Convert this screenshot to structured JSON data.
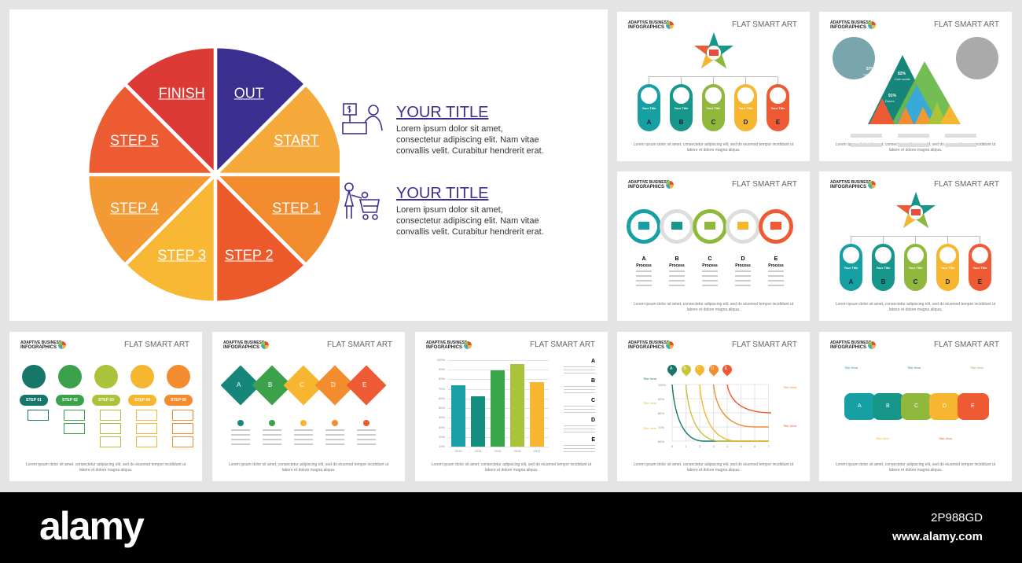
{
  "main": {
    "pie": [
      {
        "label": "OUT",
        "color": "#3a2f8e"
      },
      {
        "label": "START",
        "color": "#f6a93b"
      },
      {
        "label": "STEP 1",
        "color": "#f28c2e"
      },
      {
        "label": "STEP 2",
        "color": "#ec5a2c"
      },
      {
        "label": "STEP 3",
        "color": "#f8b833"
      },
      {
        "label": "STEP 4",
        "color": "#f39a34"
      },
      {
        "label": "STEP 5",
        "color": "#ec5b31"
      },
      {
        "label": "FINISH",
        "color": "#db3a35"
      }
    ],
    "items": [
      {
        "title": "YOUR TITLE",
        "text": "Lorem ipsum dolor sit amet, consectetur adipiscing elit. Nam vitae convallis velit. Curabitur hendrerit erat.",
        "icon": "cashier-icon"
      },
      {
        "title": "YOUR TITLE",
        "text": "Lorem ipsum dolor sit amet, consectetur adipiscing elit. Nam vitae convallis velit. Curabitur hendrerit erat.",
        "icon": "shopping-cart-icon"
      }
    ]
  },
  "common": {
    "logo_line1": "ADAPTIVE BUSINESS",
    "logo_line2": "INFOGRAPHICS",
    "header": "FLAT SMART ART",
    "footer": "Lorem ipsum dolor sit amet, consectetur adipiscing elit, sed do eiusmod tempor incididunt ut labore et dolore magna aliqua."
  },
  "colors": [
    "#16a0a3",
    "#17968a",
    "#8fb83c",
    "#f6b62f",
    "#ee5a33"
  ],
  "tree": {
    "item_title": "Your Title",
    "letters": [
      "A",
      "B",
      "C",
      "D",
      "E"
    ]
  },
  "triangles": {
    "labels": [
      "57%",
      "82%",
      "91%"
    ],
    "sublabels": [
      "Lorem Ipsum",
      "Cum sociis",
      "Donec"
    ]
  },
  "process": {
    "letters": [
      "A",
      "B",
      "C",
      "D",
      "E"
    ],
    "label": "Process"
  },
  "steps": {
    "labels": [
      "STEP 01",
      "STEP 02",
      "STEP 03",
      "STEP 04",
      "STEP 05"
    ]
  },
  "diamonds": {
    "letters": [
      "A",
      "B",
      "C",
      "D",
      "E"
    ]
  },
  "curves": {
    "letters": [
      "A",
      "B",
      "C",
      "D",
      "E"
    ],
    "yticks": [
      "100%",
      "90%",
      "80%",
      "70%",
      "60%"
    ],
    "xticks": [
      "0",
      "1",
      "2",
      "3",
      "4",
      "5",
      "6",
      "7"
    ],
    "title": "Title Here"
  },
  "puzzle": {
    "letters": [
      "A",
      "B",
      "C",
      "D",
      "E"
    ],
    "title": "Title Here"
  },
  "chart_data": {
    "type": "bar",
    "categories": [
      "2013",
      "2014",
      "2015",
      "2016",
      "2017"
    ],
    "values": [
      74,
      62,
      89,
      96,
      77
    ],
    "ylim": [
      10,
      100
    ],
    "yticks": [
      "10%",
      "20%",
      "30%",
      "40%",
      "50%",
      "60%",
      "70%",
      "80%",
      "90%",
      "100%"
    ],
    "legend": [
      "A",
      "B",
      "C",
      "D",
      "E"
    ],
    "colors": [
      "#1aa0a6",
      "#138f80",
      "#3aa64a",
      "#a9c43a",
      "#f6b62f"
    ]
  },
  "watermark": {
    "brand": "alamy",
    "id": "2P988GD",
    "url": "www.alamy.com"
  }
}
